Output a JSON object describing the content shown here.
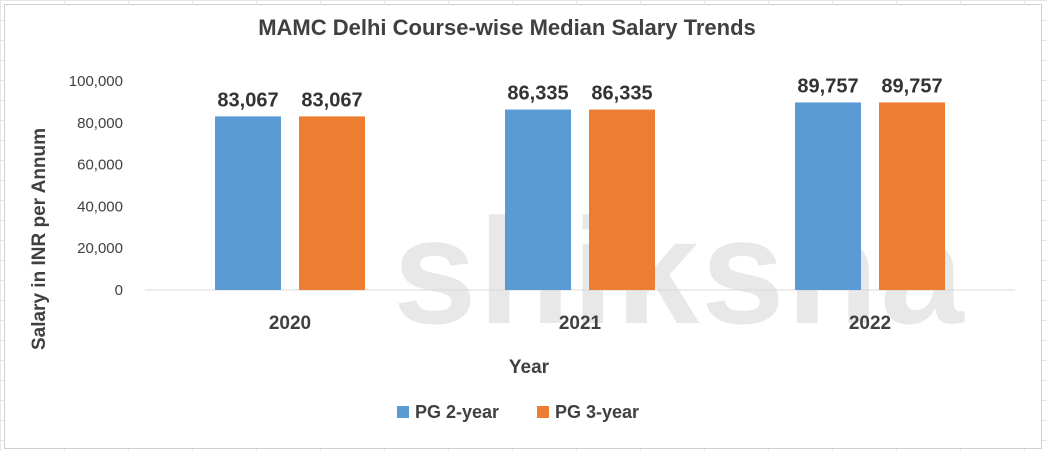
{
  "chart_data": {
    "type": "bar",
    "title": "MAMC Delhi Course-wise Median Salary Trends",
    "xlabel": "Year",
    "ylabel": "Salary in INR per Annum",
    "categories": [
      "2020",
      "2021",
      "2022"
    ],
    "series": [
      {
        "name": "PG 2-year",
        "color": "#5B9BD5",
        "values": [
          83067,
          86335,
          89757
        ],
        "labels": [
          "83,067",
          "86,335",
          "89,757"
        ]
      },
      {
        "name": "PG 3-year",
        "color": "#ED7D31",
        "values": [
          83067,
          86335,
          89757
        ],
        "labels": [
          "83,067",
          "86,335",
          "89,757"
        ]
      }
    ],
    "ylim": [
      0,
      100000
    ],
    "yticks": [
      0,
      20000,
      40000,
      60000,
      80000,
      100000
    ],
    "ytick_labels": [
      "0",
      "20,000",
      "40,000",
      "60,000",
      "80,000",
      "100,000"
    ],
    "grid": false,
    "legend": "bottom"
  },
  "watermark": "shiksha"
}
